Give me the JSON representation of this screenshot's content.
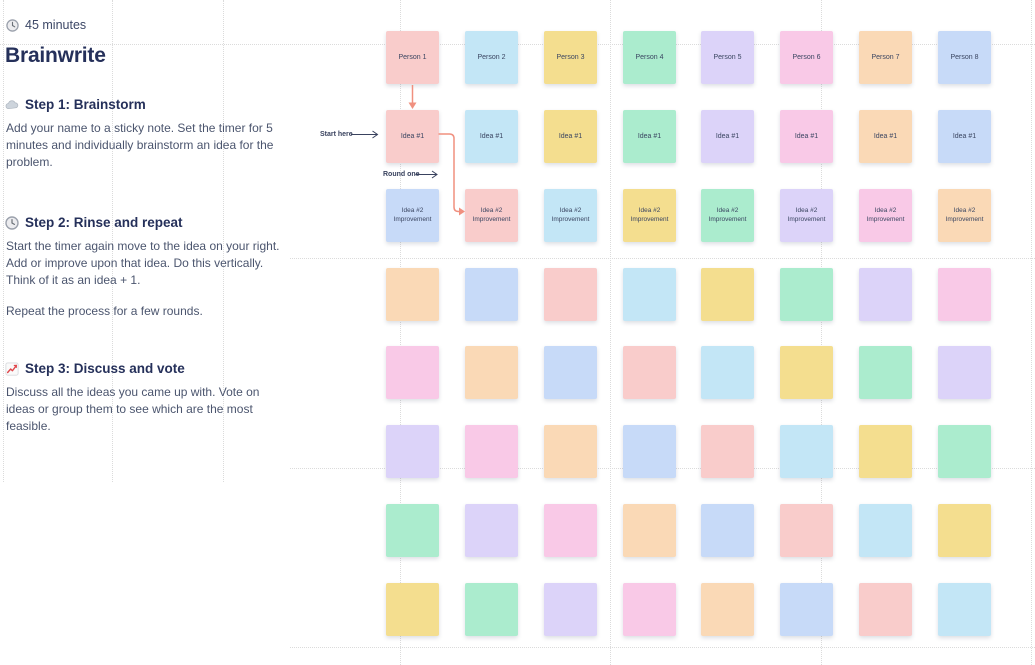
{
  "panel": {
    "duration": "45 minutes",
    "title": "Brainwrite",
    "steps": [
      {
        "icon": "cloud-icon",
        "heading": "Step 1: Brainstorm",
        "paragraphs": [
          "Add your name to a sticky note. Set the timer for 5 minutes and individually brainstorm an idea for the problem."
        ]
      },
      {
        "icon": "clock-icon",
        "heading": "Step 2: Rinse and repeat",
        "paragraphs": [
          "Start the timer again move to the idea on your right. Add or improve upon that idea. Do this vertically. Think of it as an idea + 1.",
          "Repeat the process for a few rounds."
        ]
      },
      {
        "icon": "chart-increasing-icon",
        "heading": "Step 3: Discuss and vote",
        "paragraphs": [
          "Discuss all the ideas you came up with. Vote on ideas or group them to see which are the most feasible."
        ]
      }
    ]
  },
  "annotations": {
    "start_here": "Start here",
    "round_one": "Round one"
  },
  "board": {
    "columns": 8,
    "palette": {
      "salmon": "#F9CCCB",
      "sky": "#C3E6F6",
      "yellow": "#F4DE8F",
      "mint": "#ABECCE",
      "lavender": "#DCD3F9",
      "pink": "#F9C9E7",
      "peach": "#FAD9B6",
      "periwinkle": "#C7DAF8"
    },
    "color_order": [
      "salmon",
      "sky",
      "yellow",
      "mint",
      "lavender",
      "pink",
      "peach",
      "periwinkle"
    ],
    "rows": [
      {
        "name": "person-row",
        "shift": 0,
        "labels": [
          "Person 1",
          "Person 2",
          "Person 3",
          "Person 4",
          "Person 5",
          "Person 6",
          "Person 7",
          "Person 8"
        ]
      },
      {
        "name": "idea-1-row",
        "shift": 0,
        "label": "Idea #1"
      },
      {
        "name": "idea-2-row",
        "shift": 1,
        "label_lines": [
          "Idea #2",
          "Improvement"
        ]
      },
      {
        "name": "blank-row-1",
        "shift": 2
      },
      {
        "name": "blank-row-2",
        "shift": 3
      },
      {
        "name": "blank-row-3",
        "shift": 4
      },
      {
        "name": "blank-row-4",
        "shift": 5
      },
      {
        "name": "blank-row-5",
        "shift": 6
      }
    ]
  },
  "colors": {
    "heading_text": "#25305A",
    "body_text": "#4B556E",
    "note_text": "#3A4561",
    "connector": "#F0907F",
    "annotation": "#39425E",
    "grid_line": "#DBDBDB"
  }
}
